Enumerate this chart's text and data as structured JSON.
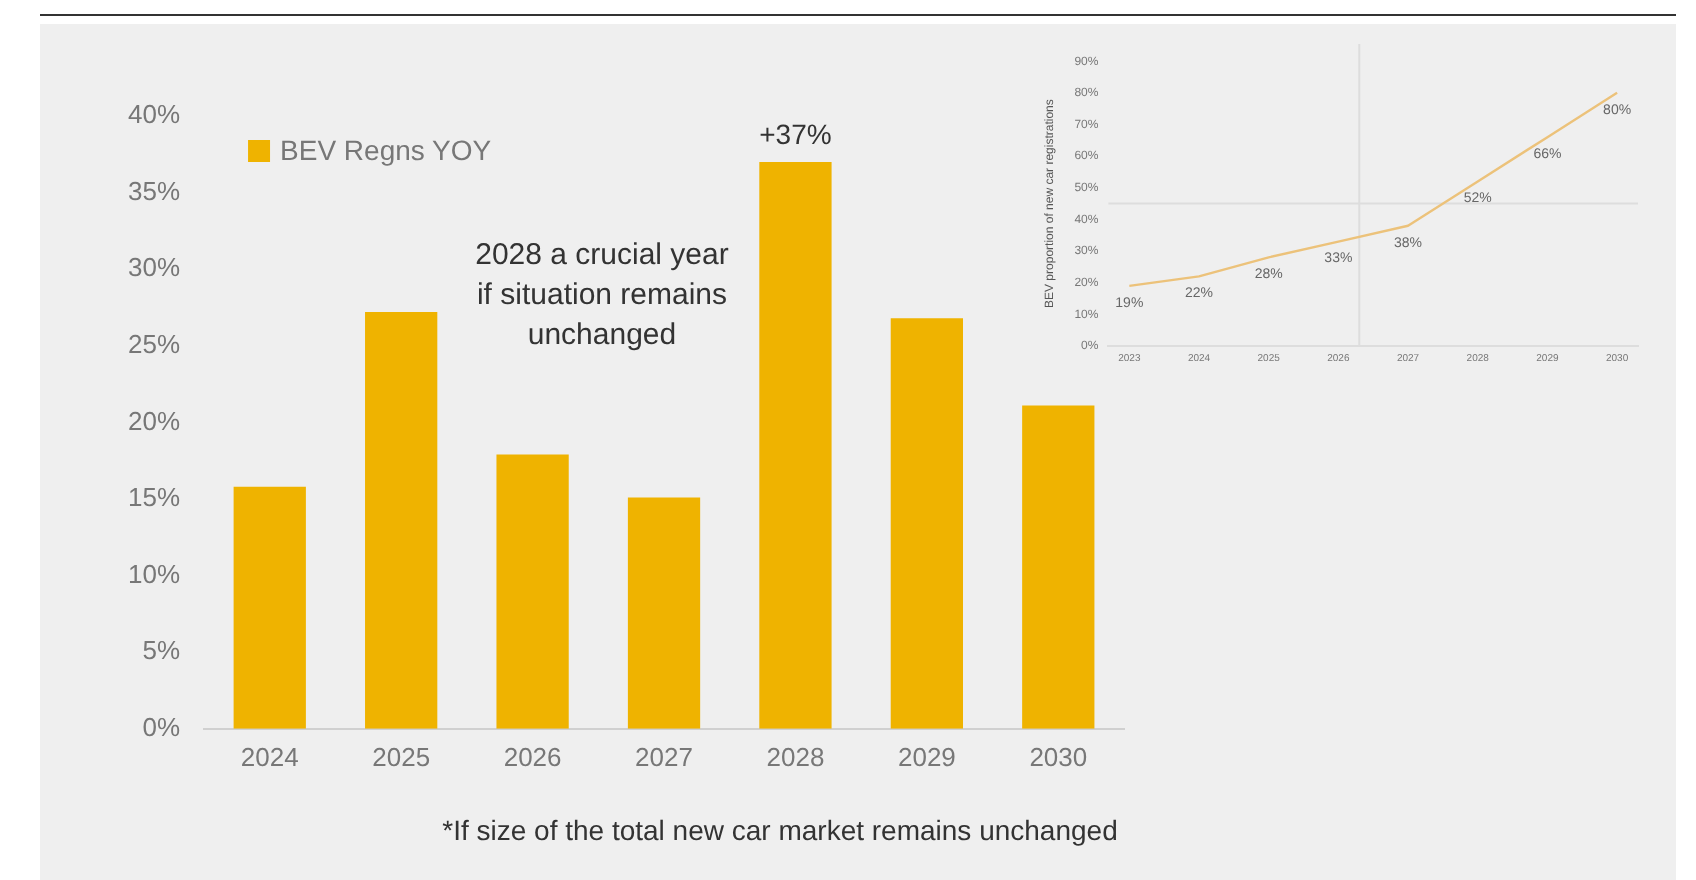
{
  "chart_data": [
    {
      "type": "bar",
      "categories": [
        "2024",
        "2025",
        "2026",
        "2027",
        "2028",
        "2029",
        "2030"
      ],
      "series": [
        {
          "name": "BEV Regns YOY",
          "color": "#efb300",
          "values": [
            15.8,
            27.2,
            17.9,
            15.1,
            37,
            26.8,
            21.1
          ],
          "value_labels": [
            null,
            null,
            null,
            null,
            "+37%",
            null,
            null
          ]
        }
      ],
      "ylim": [
        0,
        40
      ],
      "yticks": [
        {
          "value": 0,
          "label": "0%"
        },
        {
          "value": 5,
          "label": "5%"
        },
        {
          "value": 10,
          "label": "10%"
        },
        {
          "value": 15,
          "label": "15%"
        },
        {
          "value": 20,
          "label": "20%"
        },
        {
          "value": 25,
          "label": "25%"
        },
        {
          "value": 30,
          "label": "30%"
        },
        {
          "value": 35,
          "label": "35%"
        },
        {
          "value": 40,
          "label": "40%"
        }
      ],
      "grid": false,
      "legend": "top left",
      "annotations": [
        "2028 a crucial year\nif situation remains\nunchanged",
        "*If size of the total new car market remains unchanged"
      ]
    },
    {
      "type": "line",
      "x": [
        2023,
        2024,
        2025,
        2026,
        2027,
        2028,
        2029,
        2030
      ],
      "series": [
        {
          "color": "#ecc27a",
          "values": [
            19,
            22,
            28,
            33,
            38,
            52,
            66,
            80
          ],
          "value_labels": [
            "19%",
            "22%",
            "28%",
            "33%",
            "38%",
            "52%",
            "66%",
            "80%"
          ]
        }
      ],
      "ylabel": "BEV proportion of new car registrations",
      "xlim": [
        2022.7,
        2030.3
      ],
      "xticks": [
        2023,
        2024,
        2025,
        2026,
        2027,
        2028,
        2029,
        2030
      ],
      "ylim": [
        0,
        90
      ],
      "yticks": [
        {
          "value": 0,
          "label": "0%"
        },
        {
          "value": 10,
          "label": "10%"
        },
        {
          "value": 20,
          "label": "20%"
        },
        {
          "value": 30,
          "label": "30%"
        },
        {
          "value": 40,
          "label": "40%"
        },
        {
          "value": 50,
          "label": "50%"
        },
        {
          "value": 60,
          "label": "60%"
        },
        {
          "value": 70,
          "label": "70%"
        },
        {
          "value": 80,
          "label": "80%"
        },
        {
          "value": 90,
          "label": "90%"
        }
      ],
      "grid": false,
      "legend": false,
      "marker": "none",
      "line_style": "solid",
      "ref_lines": [
        {
          "axis": "y",
          "value": 45,
          "color": "#dddddd"
        },
        {
          "axis": "x",
          "value": 2026.3,
          "color": "#dddddd"
        }
      ]
    }
  ]
}
